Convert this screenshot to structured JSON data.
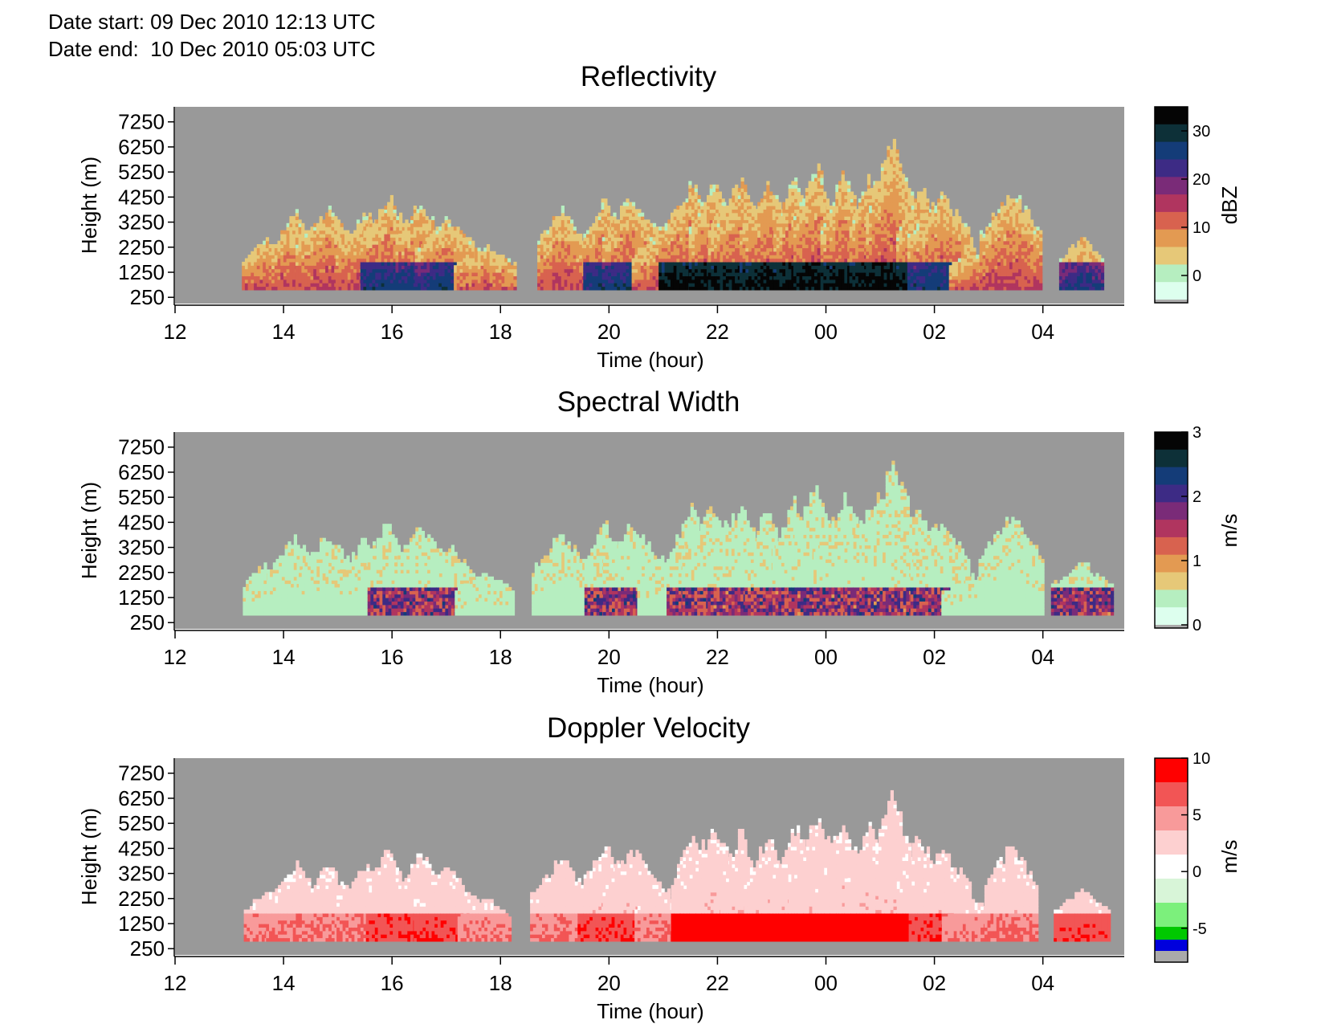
{
  "header": {
    "date_start_label": "Date start:",
    "date_start_value": "09 Dec 2010 12:13 UTC",
    "date_end_label": "Date end:",
    "date_end_value": "10 Dec 2010 05:03 UTC"
  },
  "chart_data": [
    {
      "type": "heatmap",
      "title": "Reflectivity",
      "xlabel": "Time (hour)",
      "ylabel": "Height (m)",
      "x_ticks": [
        "12",
        "14",
        "16",
        "18",
        "20",
        "22",
        "00",
        "02",
        "04"
      ],
      "y_ticks": [
        250,
        1250,
        2250,
        3250,
        4250,
        5250,
        6250,
        7250
      ],
      "colorbar": {
        "label": "dBZ",
        "ticks": [
          0,
          10,
          20,
          30
        ],
        "range": [
          -5,
          35
        ],
        "colors": [
          "#ddffee",
          "#b6eec0",
          "#e6c878",
          "#e39a52",
          "#d8624f",
          "#b0355f",
          "#7a2b78",
          "#3d2b85",
          "#143c78",
          "#0d3038",
          "#050505"
        ]
      },
      "background_color": "#999999",
      "echo_columns": [
        {
          "t": 13.65,
          "top": 2700,
          "core": 0
        },
        {
          "t": 14.2,
          "top": 3800,
          "core": 0
        },
        {
          "t": 14.8,
          "top": 3900,
          "core": 0
        },
        {
          "t": 15.5,
          "top": 3800,
          "core": 0
        },
        {
          "t": 15.9,
          "top": 4500,
          "core": 1
        },
        {
          "t": 16.5,
          "top": 4300,
          "core": 1
        },
        {
          "t": 17.0,
          "top": 3500,
          "core": 1
        },
        {
          "t": 17.7,
          "top": 2300,
          "core": 0
        },
        {
          "t": 19.1,
          "top": 4000,
          "core": 0
        },
        {
          "t": 19.9,
          "top": 4500,
          "core": 1
        },
        {
          "t": 20.4,
          "top": 4500,
          "core": 1
        },
        {
          "t": 20.9,
          "top": 3000,
          "core": 0
        },
        {
          "t": 21.5,
          "top": 5000,
          "core": 2
        },
        {
          "t": 21.9,
          "top": 5200,
          "core": 2
        },
        {
          "t": 22.4,
          "top": 5100,
          "core": 2
        },
        {
          "t": 22.9,
          "top": 5000,
          "core": 2
        },
        {
          "t": 23.4,
          "top": 5400,
          "core": 2
        },
        {
          "t": 23.8,
          "top": 5900,
          "core": 2
        },
        {
          "t": 24.3,
          "top": 5500,
          "core": 2
        },
        {
          "t": 24.8,
          "top": 5300,
          "core": 2
        },
        {
          "t": 25.2,
          "top": 6700,
          "core": 2
        },
        {
          "t": 25.7,
          "top": 5000,
          "core": 2
        },
        {
          "t": 26.1,
          "top": 4500,
          "core": 1
        },
        {
          "t": 26.7,
          "top": 2200,
          "core": 0
        },
        {
          "t": 27.4,
          "top": 4700,
          "core": 0
        },
        {
          "t": 28.7,
          "top": 2700,
          "core": 1
        }
      ]
    },
    {
      "type": "heatmap",
      "title": "Spectral Width",
      "xlabel": "Time (hour)",
      "ylabel": "Height (m)",
      "x_ticks": [
        "12",
        "14",
        "16",
        "18",
        "20",
        "22",
        "00",
        "02",
        "04"
      ],
      "y_ticks": [
        250,
        1250,
        2250,
        3250,
        4250,
        5250,
        6250,
        7250
      ],
      "colorbar": {
        "label": "m/s",
        "ticks": [
          0,
          1,
          2,
          3
        ],
        "range": [
          0,
          3
        ],
        "colors": [
          "#ddffee",
          "#b6eec0",
          "#e6c878",
          "#e39a52",
          "#d8624f",
          "#b0355f",
          "#7a2b78",
          "#3d2b85",
          "#143c78",
          "#0d3038",
          "#050505"
        ]
      },
      "background_color": "#999999"
    },
    {
      "type": "heatmap",
      "title": "Doppler Velocity",
      "xlabel": "Time (hour)",
      "ylabel": "Height (m)",
      "x_ticks": [
        "12",
        "14",
        "16",
        "18",
        "20",
        "22",
        "00",
        "02",
        "04"
      ],
      "y_ticks": [
        250,
        1250,
        2250,
        3250,
        4250,
        5250,
        6250,
        7250
      ],
      "colorbar": {
        "label": "m/s",
        "ticks": [
          -5,
          0,
          5,
          10
        ],
        "range": [
          -7,
          10
        ],
        "colors": [
          "#00c800",
          "#7cf07c",
          "#d8f5d8",
          "#ffffff",
          "#fdd0d0",
          "#f89a9a",
          "#f25555",
          "#ff0000"
        ]
      },
      "background_color": "#999999"
    }
  ]
}
